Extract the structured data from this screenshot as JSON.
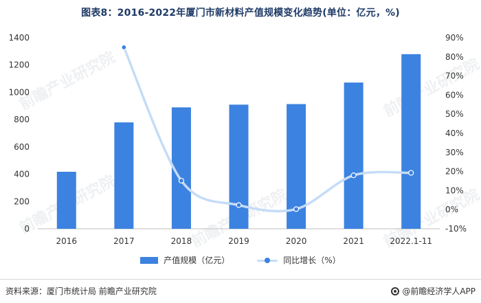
{
  "title": "图表8：2016-2022年厦门市新材料产值规模变化趋势(单位：亿元，%)",
  "watermark_text": "前瞻产业研究院",
  "source": "资料来源：厦门市统计局 前瞻产业研究院",
  "brand": "@前瞻经济学人APP",
  "colors": {
    "bar": "#3c82e0",
    "line": "#c5dcf7",
    "point": "#3c82e0",
    "title": "#1f3a66"
  },
  "chart_data": {
    "type": "bar",
    "categories": [
      "2016",
      "2017",
      "2018",
      "2019",
      "2020",
      "2021",
      "2022.1-11"
    ],
    "series": [
      {
        "name": "产值规模（亿元）",
        "type": "bar",
        "axis": "left",
        "values": [
          418,
          780,
          890,
          910,
          914,
          1072,
          1280
        ]
      },
      {
        "name": "同比增长（%）",
        "type": "line",
        "axis": "right",
        "values": [
          null,
          85,
          15.2,
          2.4,
          0.3,
          18,
          19.3
        ]
      }
    ],
    "left_axis": {
      "min": 0,
      "max": 1400,
      "ticks": [
        "0",
        "200",
        "400",
        "600",
        "800",
        "1000",
        "1200",
        "1400"
      ]
    },
    "right_axis": {
      "min": -10,
      "max": 90,
      "ticks": [
        "-10%",
        "0%",
        "10%",
        "20%",
        "30%",
        "40%",
        "50%",
        "60%",
        "70%",
        "80%",
        "90%"
      ]
    }
  }
}
